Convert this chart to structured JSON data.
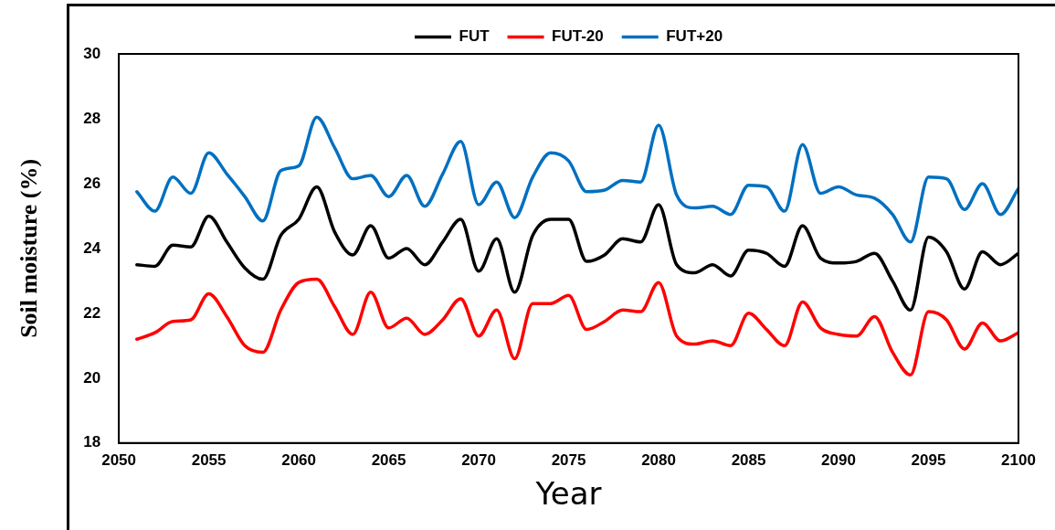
{
  "chart_data": {
    "type": "line",
    "xlabel": "Year",
    "ylabel": "Soil moisture (%)",
    "x": [
      2051,
      2052,
      2053,
      2054,
      2055,
      2056,
      2057,
      2058,
      2059,
      2060,
      2061,
      2062,
      2063,
      2064,
      2065,
      2066,
      2067,
      2068,
      2069,
      2070,
      2071,
      2072,
      2073,
      2074,
      2075,
      2076,
      2077,
      2078,
      2079,
      2080,
      2081,
      2082,
      2083,
      2084,
      2085,
      2086,
      2087,
      2088,
      2089,
      2090,
      2091,
      2092,
      2093,
      2094,
      2095,
      2096,
      2097,
      2098,
      2099,
      2100
    ],
    "series": [
      {
        "name": "FUT",
        "color": "#000000",
        "values": [
          23.5,
          23.45,
          24.1,
          24.05,
          25.0,
          24.2,
          23.4,
          23.05,
          24.4,
          24.9,
          25.9,
          24.5,
          23.8,
          24.7,
          23.7,
          24.0,
          23.5,
          24.2,
          24.9,
          23.3,
          24.3,
          22.65,
          24.4,
          24.9,
          24.9,
          23.6,
          23.8,
          24.3,
          24.2,
          25.35,
          23.5,
          23.25,
          23.5,
          23.15,
          23.95,
          23.85,
          23.45,
          24.7,
          23.7,
          23.55,
          23.6,
          23.85,
          23.0,
          22.1,
          24.35,
          23.9,
          22.75,
          23.9,
          23.5,
          23.85
        ]
      },
      {
        "name": "FUT-20",
        "color": "#ff0000",
        "values": [
          21.2,
          21.4,
          21.75,
          21.8,
          22.6,
          21.9,
          21.0,
          20.8,
          22.1,
          22.95,
          23.05,
          22.2,
          21.35,
          22.65,
          21.55,
          21.85,
          21.35,
          21.8,
          22.45,
          21.3,
          22.1,
          20.6,
          22.3,
          22.3,
          22.55,
          21.5,
          21.75,
          22.1,
          22.05,
          22.95,
          21.3,
          21.05,
          21.15,
          21.0,
          22.0,
          21.5,
          21.0,
          22.35,
          21.55,
          21.35,
          21.3,
          21.9,
          20.8,
          20.1,
          22.05,
          21.8,
          20.9,
          21.7,
          21.15,
          21.4
        ]
      },
      {
        "name": "FUT+20",
        "color": "#0070c0",
        "values": [
          25.75,
          25.15,
          26.2,
          25.7,
          26.95,
          26.3,
          25.6,
          24.85,
          26.4,
          26.55,
          28.05,
          27.1,
          26.15,
          26.25,
          25.6,
          26.25,
          25.3,
          26.3,
          27.3,
          25.35,
          26.05,
          24.95,
          26.2,
          26.95,
          26.7,
          25.75,
          25.8,
          26.1,
          26.05,
          27.8,
          25.65,
          25.25,
          25.3,
          25.05,
          25.95,
          25.9,
          25.15,
          27.2,
          25.7,
          25.9,
          25.65,
          25.55,
          25.05,
          24.2,
          26.2,
          26.15,
          25.2,
          26.0,
          25.05,
          25.85
        ]
      }
    ],
    "xlim": [
      2050,
      2100
    ],
    "xticks": [
      2050,
      2055,
      2060,
      2065,
      2070,
      2075,
      2080,
      2085,
      2090,
      2095,
      2100
    ],
    "ylim": [
      18,
      30
    ],
    "yticks": [
      18,
      20,
      22,
      24,
      26,
      28,
      30
    ],
    "grid": false,
    "legend": "top",
    "marker": "none",
    "line_style": "solid"
  }
}
